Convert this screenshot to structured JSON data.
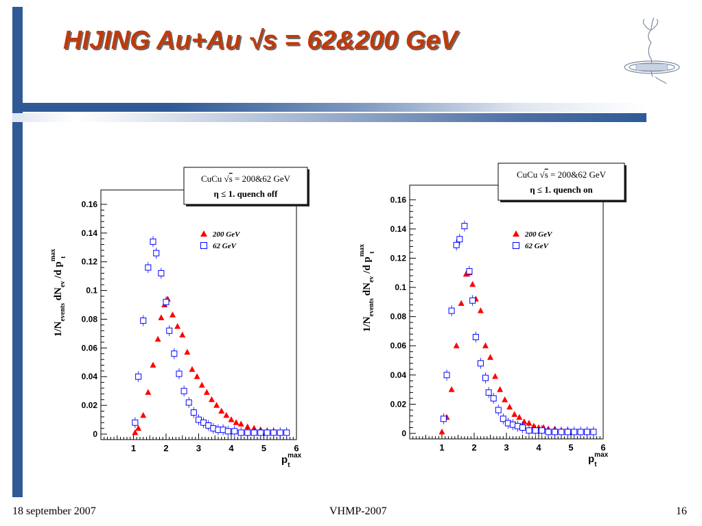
{
  "slide": {
    "title": "HIJING Au+Au √s = 62&200  GeV",
    "footer": {
      "date": "18 september 2007",
      "conference": "VHMP-2007",
      "page_number": "16"
    },
    "colors": {
      "title": "#c0390b",
      "accent": "#2f5a96",
      "series_200": "#ff0000",
      "series_62": "#0000ff"
    }
  },
  "chart_data": [
    {
      "type": "scatter",
      "info_box": {
        "line1_prefix": "CuCu",
        "line1_sqrt": "s",
        "line1_suffix": " = 200&62 GeV",
        "line2": "η ≤ 1. quench off"
      },
      "ylabel": {
        "main": "1/N",
        "sub_events": "events",
        "dn": " dN",
        "sub_ev": "ev",
        "dp": " /d p",
        "sub_t": "t",
        "sup_max": "max"
      },
      "xlabel": {
        "main": "p",
        "sub": "t",
        "sup": "max"
      },
      "xlim": [
        0,
        6
      ],
      "ylim": [
        0,
        0.17
      ],
      "xticks": [
        "1",
        "2",
        "3",
        "4",
        "5",
        "6"
      ],
      "yticks": [
        "0",
        "0.02",
        "0.04",
        "0.06",
        "0.08",
        "0.1",
        "0.12",
        "0.14",
        "0.16"
      ],
      "legend_position": "top-right",
      "series": [
        {
          "name": "200 GeV",
          "marker": "filled-triangle",
          "color": "#ff0000",
          "x": [
            1.05,
            1.15,
            1.3,
            1.45,
            1.6,
            1.75,
            1.85,
            1.95,
            2.05,
            2.2,
            2.35,
            2.5,
            2.65,
            2.8,
            2.95,
            3.1,
            3.25,
            3.4,
            3.55,
            3.7,
            3.85,
            4.0,
            4.15,
            4.3,
            4.5,
            4.7,
            4.9,
            5.1,
            5.3,
            5.5,
            5.7
          ],
          "y": [
            0.001,
            0.004,
            0.013,
            0.029,
            0.048,
            0.066,
            0.081,
            0.09,
            0.094,
            0.083,
            0.075,
            0.069,
            0.057,
            0.045,
            0.04,
            0.034,
            0.029,
            0.024,
            0.02,
            0.016,
            0.013,
            0.01,
            0.008,
            0.007,
            0.005,
            0.004,
            0.003,
            0.002,
            0.002,
            0.001,
            0.001
          ]
        },
        {
          "name": "62 GeV",
          "marker": "open-square",
          "color": "#0000ff",
          "x": [
            1.05,
            1.15,
            1.3,
            1.45,
            1.6,
            1.7,
            1.85,
            2.0,
            2.1,
            2.25,
            2.4,
            2.55,
            2.7,
            2.85,
            3.0,
            3.15,
            3.3,
            3.45,
            3.6,
            3.75,
            3.9,
            4.1,
            4.3,
            4.5,
            4.7,
            4.9,
            5.1,
            5.3,
            5.5,
            5.7
          ],
          "y": [
            0.008,
            0.04,
            0.079,
            0.116,
            0.134,
            0.126,
            0.112,
            0.092,
            0.072,
            0.056,
            0.042,
            0.03,
            0.022,
            0.015,
            0.01,
            0.008,
            0.006,
            0.004,
            0.003,
            0.003,
            0.002,
            0.002,
            0.001,
            0.001,
            0.001,
            0.001,
            0.001,
            0.001,
            0.001,
            0.001
          ]
        }
      ]
    },
    {
      "type": "scatter",
      "info_box": {
        "line1_prefix": "CuCu",
        "line1_sqrt": "s",
        "line1_suffix": " = 200&62 GeV",
        "line2": "η ≤ 1. quench on"
      },
      "ylabel": {
        "main": "1/N",
        "sub_events": "events",
        "dn": " dN",
        "sub_ev": "ev",
        "dp": " /d p",
        "sub_t": "t",
        "sup_max": "max"
      },
      "xlabel": {
        "main": "p",
        "sub": "t",
        "sup": "max"
      },
      "xlim": [
        0,
        6
      ],
      "ylim": [
        0,
        0.17
      ],
      "xticks": [
        "1",
        "2",
        "3",
        "4",
        "5",
        "6"
      ],
      "yticks": [
        "0",
        "0.02",
        "0.04",
        "0.06",
        "0.08",
        "0.1",
        "0.12",
        "0.14",
        "0.16"
      ],
      "legend_position": "top-right",
      "series": [
        {
          "name": "200 GeV",
          "marker": "filled-triangle",
          "color": "#ff0000",
          "x": [
            1.0,
            1.15,
            1.3,
            1.45,
            1.6,
            1.75,
            1.85,
            1.95,
            2.05,
            2.2,
            2.35,
            2.5,
            2.65,
            2.8,
            2.95,
            3.1,
            3.25,
            3.4,
            3.55,
            3.7,
            3.85,
            4.0,
            4.15,
            4.3,
            4.5,
            4.7,
            4.9,
            5.1,
            5.3,
            5.5,
            5.7
          ],
          "y": [
            0.001,
            0.011,
            0.03,
            0.06,
            0.089,
            0.109,
            0.11,
            0.102,
            0.092,
            0.084,
            0.06,
            0.052,
            0.039,
            0.03,
            0.023,
            0.018,
            0.013,
            0.011,
            0.008,
            0.007,
            0.005,
            0.004,
            0.004,
            0.003,
            0.003,
            0.002,
            0.002,
            0.001,
            0.001,
            0.001,
            0.001
          ]
        },
        {
          "name": "62 GeV",
          "marker": "open-square",
          "color": "#0000ff",
          "x": [
            1.05,
            1.15,
            1.3,
            1.45,
            1.55,
            1.7,
            1.85,
            1.95,
            2.05,
            2.2,
            2.35,
            2.45,
            2.6,
            2.75,
            2.9,
            3.05,
            3.2,
            3.35,
            3.5,
            3.7,
            3.9,
            4.1,
            4.3,
            4.5,
            4.7,
            4.9,
            5.1,
            5.3,
            5.5,
            5.7
          ],
          "y": [
            0.01,
            0.04,
            0.084,
            0.129,
            0.133,
            0.142,
            0.111,
            0.091,
            0.066,
            0.048,
            0.038,
            0.028,
            0.024,
            0.016,
            0.01,
            0.007,
            0.006,
            0.005,
            0.004,
            0.002,
            0.002,
            0.002,
            0.001,
            0.001,
            0.001,
            0.001,
            0.001,
            0.001,
            0.001,
            0.001
          ]
        }
      ]
    }
  ]
}
